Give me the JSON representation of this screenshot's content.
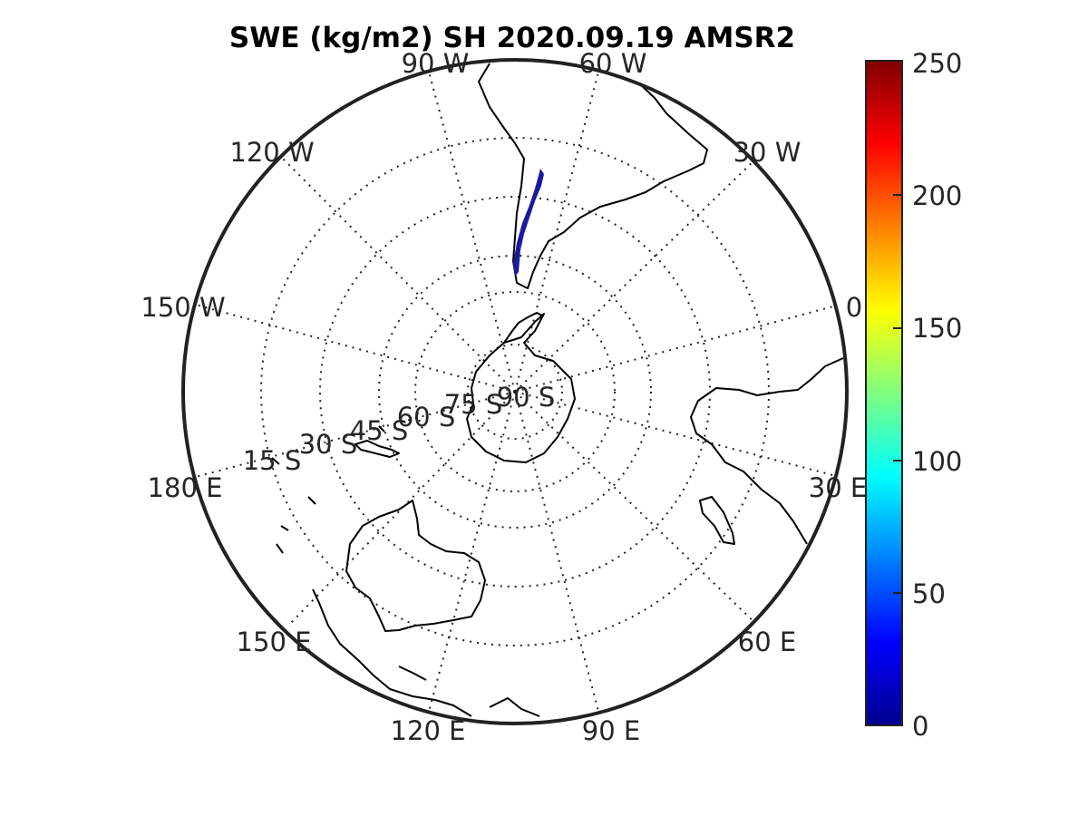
{
  "title": "SWE (kg/m2) SH 2020.09.19 AMSR2",
  "colors": {
    "colormap": [
      "#00008f",
      "#0000ff",
      "#00ffff",
      "#ffff00",
      "#ff0000",
      "#800000"
    ],
    "snow": "#1a1aa0",
    "grid": "#222222",
    "text": "#262626"
  },
  "map": {
    "projection": "south-polar stereographic",
    "longitude_labels": [
      {
        "lon": -90,
        "text": "90 W"
      },
      {
        "lon": -60,
        "text": "60 W"
      },
      {
        "lon": -30,
        "text": "30 W"
      },
      {
        "lon": -120,
        "text": "120 W"
      },
      {
        "lon": -150,
        "text": "150 W"
      },
      {
        "lon": 180,
        "text": "180 E"
      },
      {
        "lon": 150,
        "text": "150 E"
      },
      {
        "lon": 120,
        "text": "120 E"
      },
      {
        "lon": 90,
        "text": "90 E"
      },
      {
        "lon": 60,
        "text": "60 E"
      },
      {
        "lon": 30,
        "text": "30 E"
      },
      {
        "lon": 0,
        "text": "0"
      }
    ],
    "latitude_labels": [
      {
        "lat": -15,
        "text": "15 S"
      },
      {
        "lat": -30,
        "text": "30 S"
      },
      {
        "lat": -45,
        "text": "45 S"
      },
      {
        "lat": -60,
        "text": "60 S"
      },
      {
        "lat": -75,
        "text": "75 S"
      },
      {
        "lat": -90,
        "text": "90 S"
      }
    ],
    "snow_region": "Southern Andes"
  },
  "colorbar": {
    "label": "",
    "min": 0,
    "max": 250,
    "ticks": [
      "250",
      "200",
      "150",
      "100",
      "50",
      "0"
    ]
  }
}
